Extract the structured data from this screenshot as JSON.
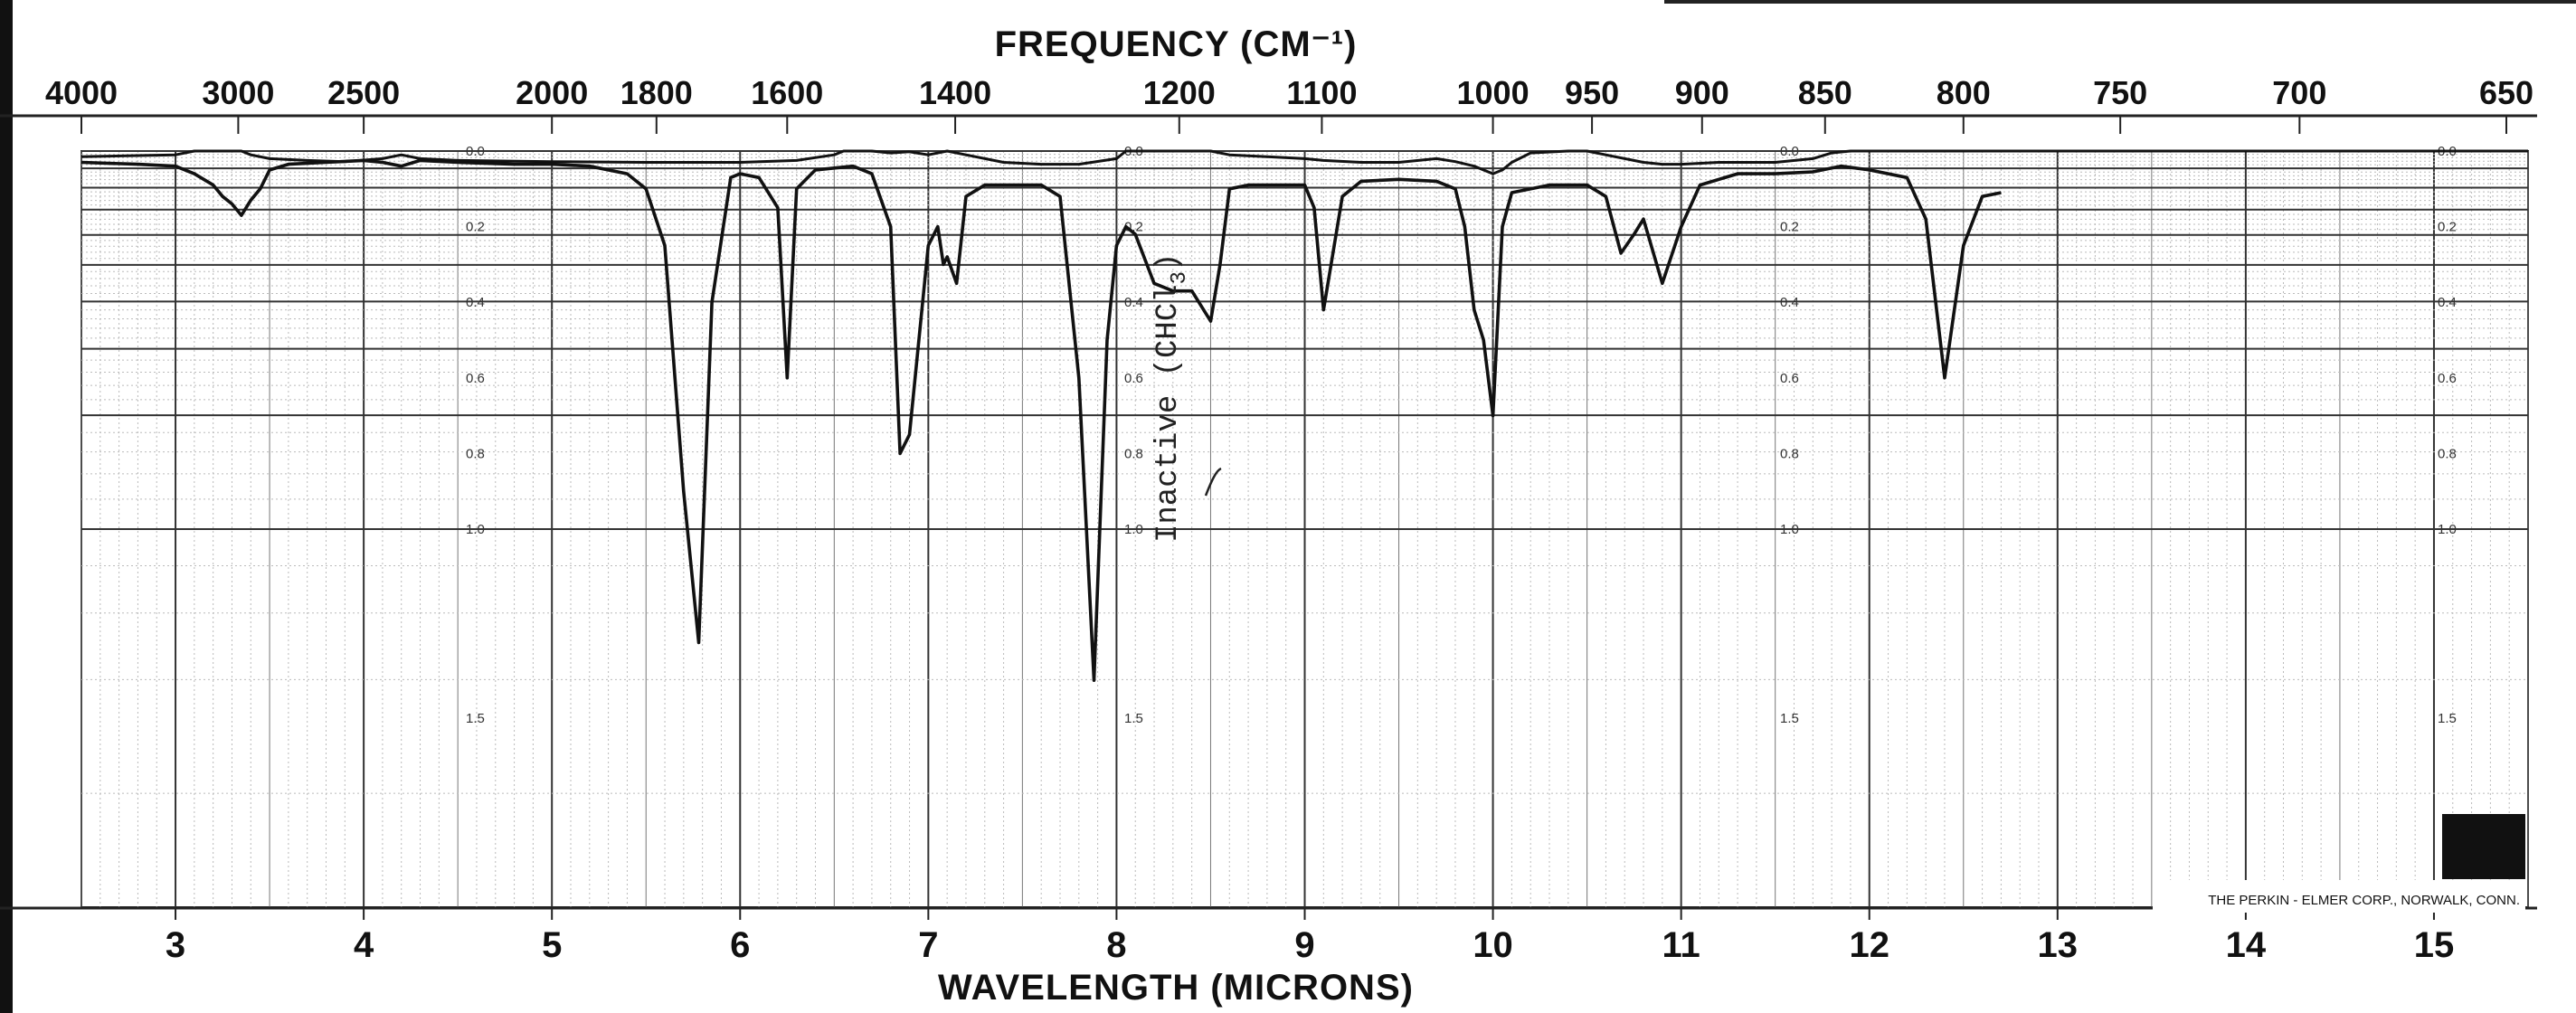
{
  "chart_data": {
    "type": "line",
    "top_axis": {
      "title": "FREQUENCY (CM⁻¹)",
      "ticks": [
        4000,
        3000,
        2500,
        2000,
        1800,
        1600,
        1400,
        1200,
        1100,
        1000,
        950,
        900,
        850,
        800,
        750,
        700,
        650
      ]
    },
    "bottom_axis": {
      "title": "WAVELENGTH (MICRONS)",
      "ticks": [
        3,
        4,
        5,
        6,
        7,
        8,
        9,
        10,
        11,
        12,
        13,
        14,
        15
      ],
      "xlim": [
        2.5,
        15.5
      ]
    },
    "absorbance_scale": {
      "labels": [
        "0.0",
        "0.2",
        "0.4",
        "0.6",
        "0.8",
        "1.0",
        "1.5"
      ],
      "values": [
        0.0,
        0.2,
        0.4,
        0.6,
        0.8,
        1.0,
        1.5
      ]
    },
    "annotation": {
      "text": "Inactive (CHCl",
      "subscript": "3",
      "close": ")"
    },
    "credit": "THE PERKIN - ELMER CORP., NORWALK, CONN.",
    "grid": true,
    "series": [
      {
        "x": [
          2.5,
          2.8,
          3.0,
          3.1,
          3.2,
          3.25,
          3.3,
          3.35,
          3.4,
          3.5,
          3.7,
          3.9,
          4.1,
          4.2,
          4.3,
          4.5,
          5.0,
          5.5,
          6.0,
          6.3,
          6.5,
          6.55,
          6.7,
          6.8,
          6.9,
          7.0,
          7.1,
          7.2,
          7.4,
          7.6,
          7.8,
          8.0,
          8.05,
          8.2,
          8.3,
          8.5,
          8.6,
          8.8,
          9.0,
          9.1,
          9.3,
          9.5,
          9.7,
          9.8,
          9.9,
          10.0,
          10.05,
          10.1,
          10.2,
          10.4,
          10.5,
          10.6,
          10.8,
          10.9,
          11.0,
          11.2,
          11.5,
          11.7,
          11.8,
          11.9,
          12.0,
          12.2,
          15.5
        ],
        "y": [
          0.015,
          0.012,
          0.01,
          0.0,
          0.0,
          0.0,
          0.0,
          0.0,
          0.01,
          0.02,
          0.025,
          0.028,
          0.02,
          0.01,
          0.02,
          0.025,
          0.028,
          0.03,
          0.03,
          0.025,
          0.01,
          0.0,
          0.0,
          0.005,
          0.002,
          0.01,
          0.0,
          0.01,
          0.03,
          0.035,
          0.035,
          0.02,
          0.0,
          0.0,
          0.0,
          0.0,
          0.01,
          0.015,
          0.02,
          0.025,
          0.03,
          0.03,
          0.02,
          0.028,
          0.04,
          0.06,
          0.05,
          0.03,
          0.005,
          0.0,
          0.0,
          0.01,
          0.03,
          0.035,
          0.035,
          0.03,
          0.03,
          0.02,
          0.005,
          0.0,
          0.0,
          0.0,
          0.0
        ]
      },
      {
        "x": [
          2.5,
          2.8,
          3.0,
          3.1,
          3.2,
          3.25,
          3.3,
          3.35,
          3.4,
          3.45,
          3.5,
          3.6,
          3.8,
          4.0,
          4.1,
          4.2,
          4.3,
          4.5,
          4.8,
          5.0,
          5.2,
          5.4,
          5.5,
          5.6,
          5.7,
          5.78,
          5.85,
          5.95,
          6.0,
          6.1,
          6.2,
          6.25,
          6.3,
          6.4,
          6.5,
          6.6,
          6.7,
          6.8,
          6.85,
          6.9,
          7.0,
          7.05,
          7.08,
          7.1,
          7.15,
          7.2,
          7.3,
          7.5,
          7.6,
          7.7,
          7.8,
          7.88,
          7.95,
          8.0,
          8.05,
          8.1,
          8.2,
          8.3,
          8.4,
          8.5,
          8.55,
          8.6,
          8.7,
          8.8,
          8.9,
          9.0,
          9.05,
          9.1,
          9.2,
          9.3,
          9.5,
          9.7,
          9.8,
          9.85,
          9.9,
          9.95,
          10.0,
          10.05,
          10.1,
          10.3,
          10.5,
          10.6,
          10.68,
          10.75,
          10.8,
          10.9,
          11.0,
          11.1,
          11.3,
          11.5,
          11.7,
          11.85,
          12.0,
          12.2,
          12.3,
          12.4,
          12.5,
          12.6,
          12.7
        ],
        "y": [
          0.03,
          0.035,
          0.04,
          0.06,
          0.09,
          0.12,
          0.14,
          0.17,
          0.13,
          0.1,
          0.05,
          0.035,
          0.03,
          0.025,
          0.03,
          0.04,
          0.025,
          0.03,
          0.035,
          0.035,
          0.04,
          0.06,
          0.1,
          0.25,
          0.9,
          1.3,
          0.4,
          0.07,
          0.06,
          0.07,
          0.15,
          0.6,
          0.1,
          0.05,
          0.045,
          0.04,
          0.06,
          0.2,
          0.8,
          0.75,
          0.25,
          0.2,
          0.3,
          0.28,
          0.35,
          0.12,
          0.09,
          0.09,
          0.09,
          0.12,
          0.6,
          1.4,
          0.5,
          0.25,
          0.2,
          0.22,
          0.35,
          0.37,
          0.37,
          0.45,
          0.3,
          0.1,
          0.09,
          0.09,
          0.09,
          0.09,
          0.15,
          0.42,
          0.12,
          0.08,
          0.075,
          0.08,
          0.1,
          0.2,
          0.42,
          0.5,
          0.7,
          0.2,
          0.11,
          0.09,
          0.09,
          0.12,
          0.27,
          0.22,
          0.18,
          0.35,
          0.2,
          0.09,
          0.06,
          0.06,
          0.055,
          0.04,
          0.05,
          0.07,
          0.18,
          0.6,
          0.25,
          0.12,
          0.11
        ]
      }
    ]
  }
}
